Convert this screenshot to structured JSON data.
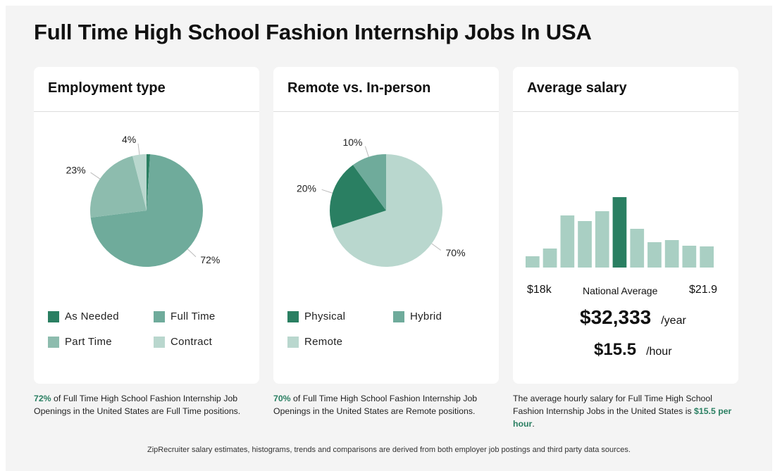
{
  "page": {
    "title": "Full Time High School Fashion Internship Jobs In USA",
    "footer": "ZipRecruiter salary estimates, histograms, trends and comparisons are derived from both employer job postings and third party data sources."
  },
  "colors": {
    "dark": "#2a7f62",
    "medium": "#6fab9b",
    "soft": "#8dbcae",
    "light": "#b9d7ce",
    "accent_text": "#2a7f62"
  },
  "employment": {
    "title": "Employment type",
    "legend": [
      {
        "label": "As Needed",
        "color": "#2a7f62"
      },
      {
        "label": "Full Time",
        "color": "#6fab9b"
      },
      {
        "label": "Part Time",
        "color": "#8dbcae"
      },
      {
        "label": "Contract",
        "color": "#b9d7ce"
      }
    ],
    "caption_pct": "72%",
    "caption_rest": " of Full Time High School Fashion Internship Job Openings in the United States are Full Time positions."
  },
  "remote": {
    "title": "Remote vs. In-person",
    "legend": [
      {
        "label": "Physical",
        "color": "#2a7f62"
      },
      {
        "label": "Hybrid",
        "color": "#6fab9b"
      },
      {
        "label": "Remote",
        "color": "#b9d7ce"
      }
    ],
    "caption_pct": "70%",
    "caption_rest": " of Full Time High School Fashion Internship Job Openings in the United States are Remote positions."
  },
  "salary": {
    "title": "Average salary",
    "range_min": "$18k",
    "range_max": "$21.9",
    "national_average_label": "National Average",
    "yearly": "$32,333",
    "yearly_unit": "/year",
    "hourly": "$15.5",
    "hourly_unit": "/hour",
    "caption_pre": "The average hourly salary for Full Time High School Fashion Internship Jobs in the United States is ",
    "caption_hl": "$15.5 per hour",
    "caption_post": "."
  },
  "chart_data": [
    {
      "type": "pie",
      "title": "Employment type",
      "series": [
        {
          "name": "As Needed",
          "value": 1,
          "label": "",
          "color": "#2a7f62"
        },
        {
          "name": "Full Time",
          "value": 72,
          "label": "72%",
          "color": "#6fab9b"
        },
        {
          "name": "Part Time",
          "value": 23,
          "label": "23%",
          "color": "#8dbcae"
        },
        {
          "name": "Contract",
          "value": 4,
          "label": "4%",
          "color": "#b9d7ce"
        }
      ]
    },
    {
      "type": "pie",
      "title": "Remote vs. In-person",
      "series": [
        {
          "name": "Remote",
          "value": 70,
          "label": "70%",
          "color": "#b9d7ce"
        },
        {
          "name": "Physical",
          "value": 20,
          "label": "20%",
          "color": "#2a7f62"
        },
        {
          "name": "Hybrid",
          "value": 10,
          "label": "10%",
          "color": "#6fab9b"
        }
      ]
    },
    {
      "type": "bar",
      "title": "Average salary",
      "values": [
        16,
        27,
        74,
        66,
        80,
        100,
        55,
        36,
        39,
        31,
        30
      ],
      "highlight_index": 5,
      "bar_color": "#a9cfc3",
      "highlight_color": "#2a7f62",
      "ylim": [
        0,
        100
      ]
    }
  ]
}
